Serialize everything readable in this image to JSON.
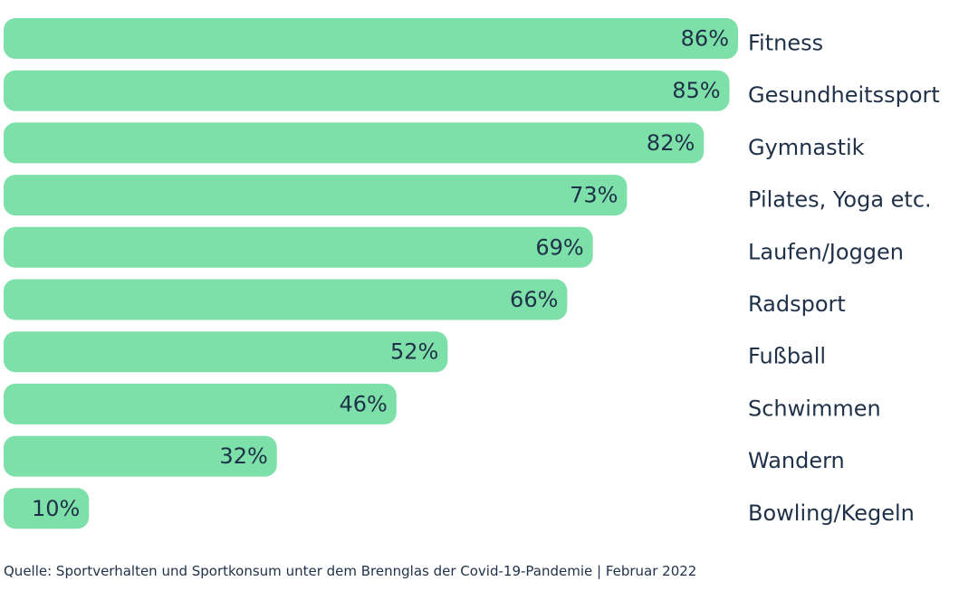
{
  "chart_data": {
    "type": "bar",
    "orientation": "horizontal",
    "categories": [
      "Fitness",
      "Gesundheitssport",
      "Gymnastik",
      "Pilates, Yoga etc.",
      "Laufen/Joggen",
      "Radsport",
      "Fußball",
      "Schwimmen",
      "Wandern",
      "Bowling/Kegeln"
    ],
    "values": [
      86,
      85,
      82,
      73,
      69,
      66,
      52,
      46,
      32,
      10
    ],
    "value_labels": [
      "86%",
      "85%",
      "82%",
      "73%",
      "69%",
      "66%",
      "52%",
      "46%",
      "32%",
      "10%"
    ],
    "title": "",
    "xlabel": "",
    "ylabel": "",
    "xlim": [
      0,
      86
    ],
    "grid": false,
    "legend": "none",
    "bar_color": "#7de0a9",
    "text_color": "#1f3148"
  },
  "source": "Quelle: Sportverhalten und Sportkonsum unter dem Brennglas der Covid-19-Pandemie | Februar 2022"
}
